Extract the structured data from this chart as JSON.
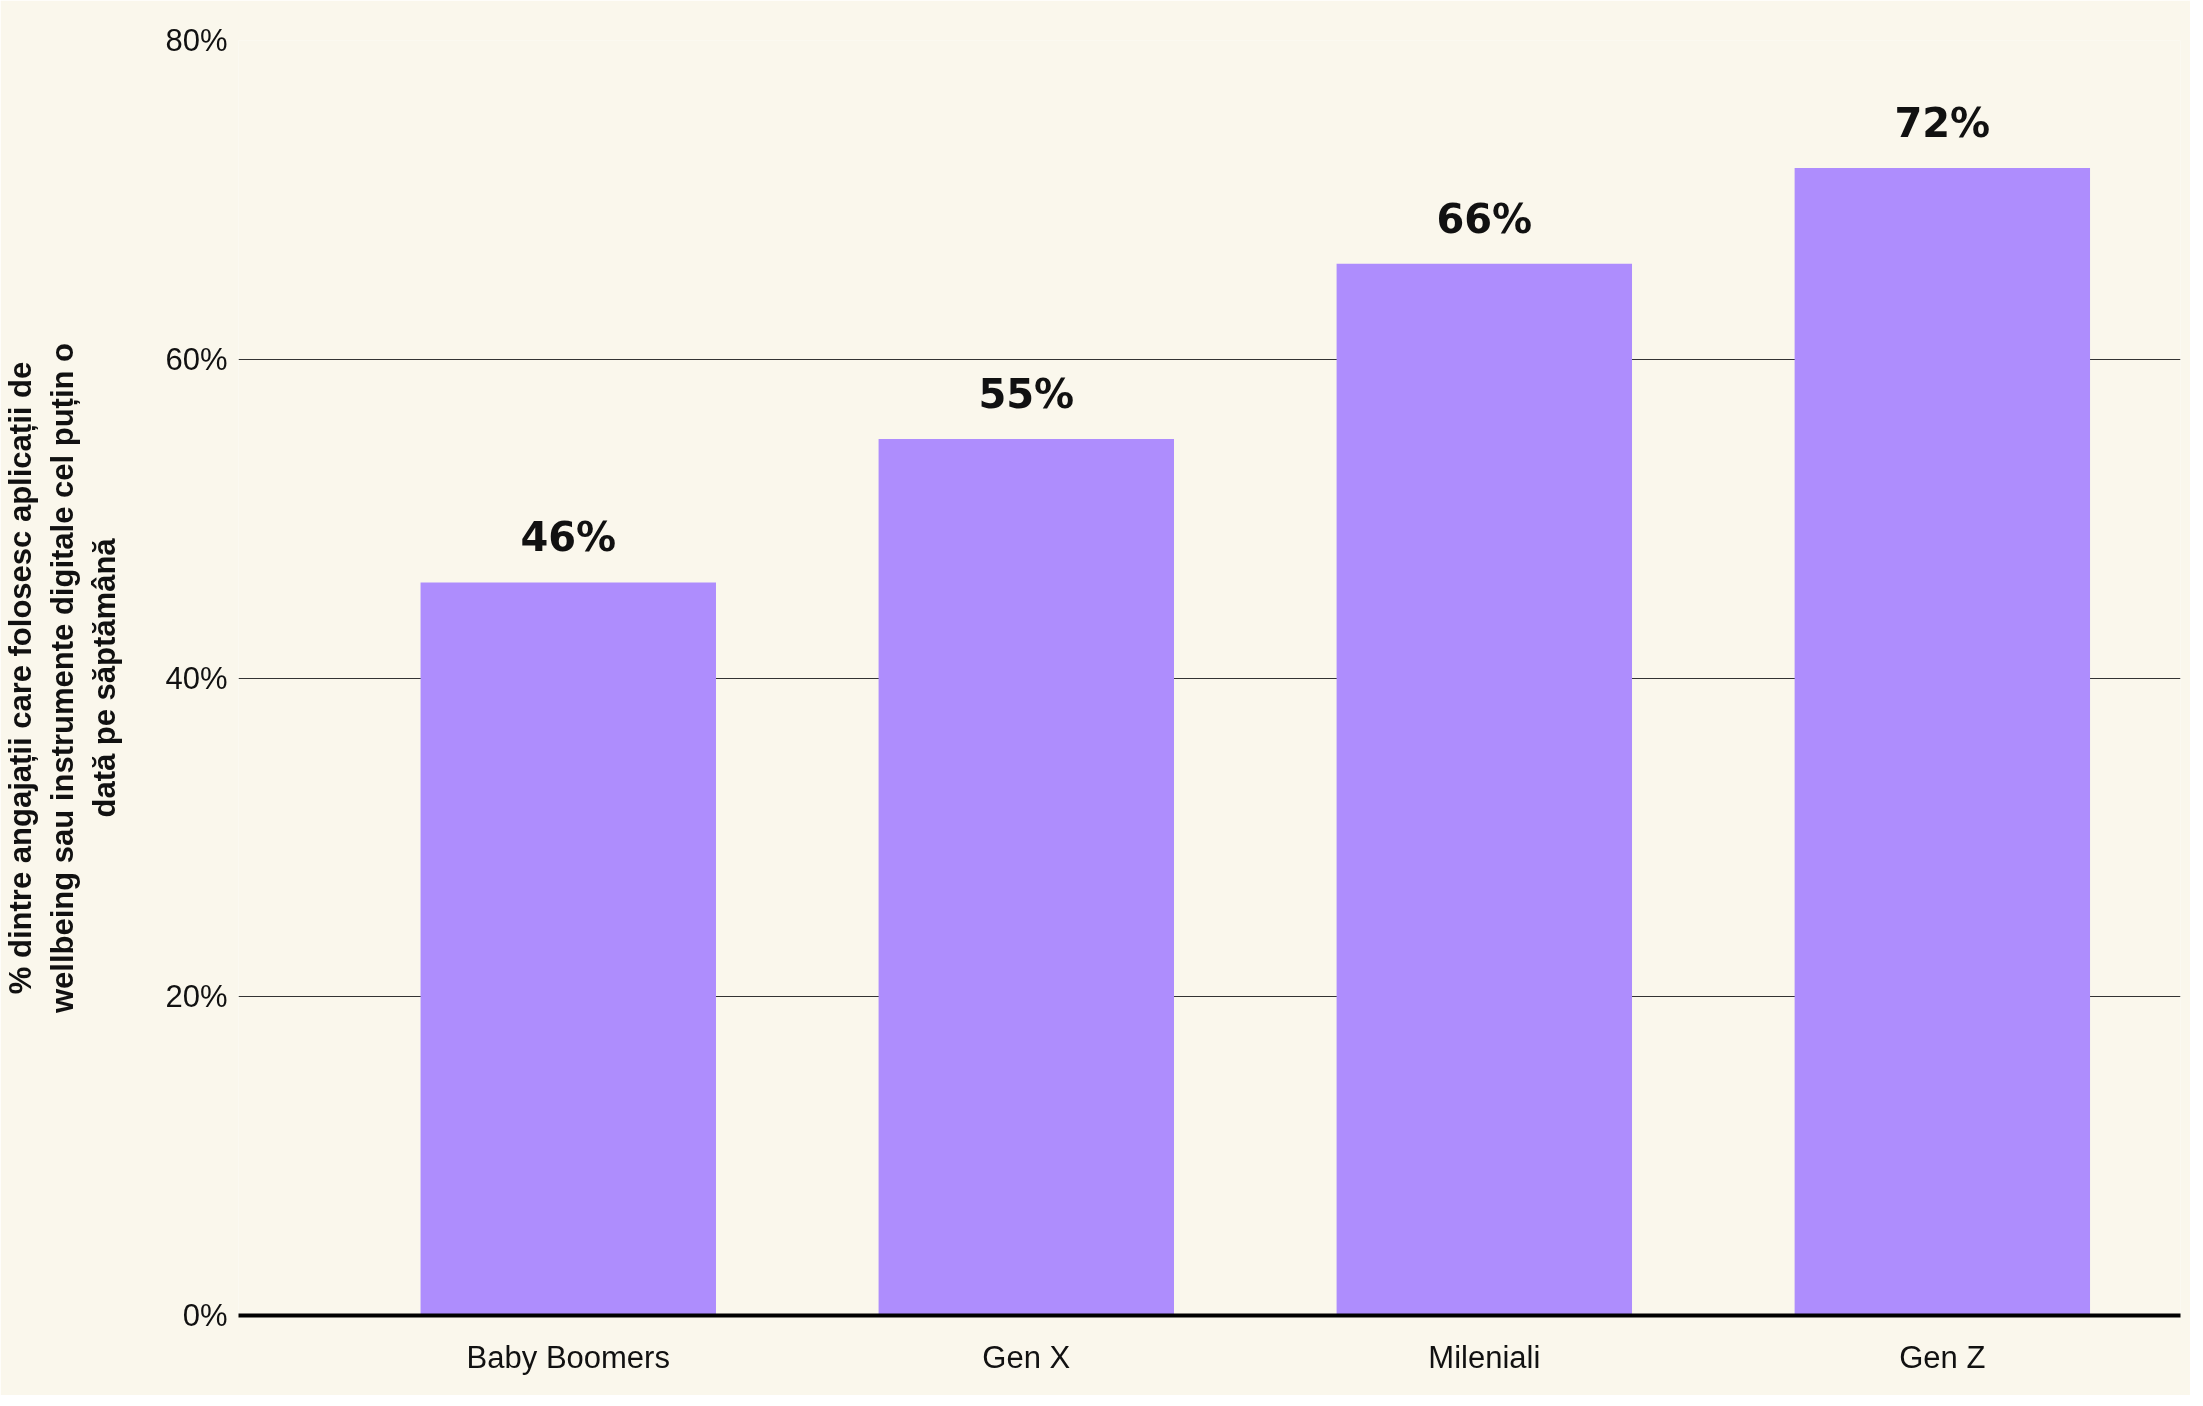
{
  "chart_data": {
    "type": "bar",
    "ylabel": "% dintre angajații care folosesc aplicații de wellbeing sau instrumente digitale cel puțin o dată pe săptămână",
    "categories": [
      "Baby Boomers",
      "Gen X",
      "Mileniali",
      "Gen Z"
    ],
    "values": [
      46,
      55,
      66,
      72
    ],
    "color": "#ae8dfd",
    "data_labels": true,
    "value_labels": [
      "46%",
      "55%",
      "66%",
      "72%"
    ],
    "ylim": [
      0,
      80
    ],
    "yticks": [
      {
        "value": 0,
        "label": "0%"
      },
      {
        "value": 20,
        "label": "20%"
      },
      {
        "value": 40,
        "label": "40%"
      },
      {
        "value": 60,
        "label": "60%"
      },
      {
        "value": 80,
        "label": "80%"
      }
    ],
    "grid": "y"
  }
}
